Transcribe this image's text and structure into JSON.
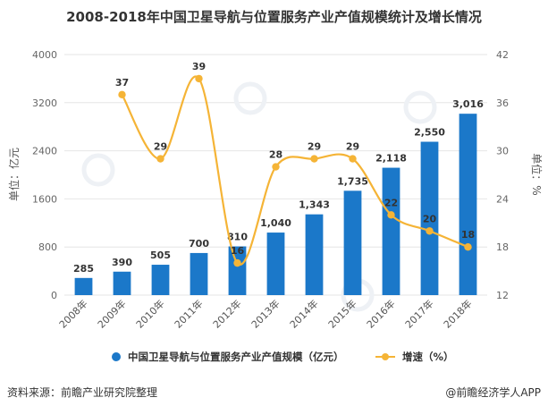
{
  "title": "2008-2018年中国卫星导航与位置服务产业产值规模统计及增长情况",
  "footer": {
    "source": "资料来源：前瞻产业研究院整理",
    "brand": "@前瞻经济学人APP"
  },
  "colors": {
    "bar": "#1b78c9",
    "line": "#f5b436",
    "grid": "#e6e6e6"
  },
  "chart_data": {
    "type": "bar+line",
    "categories": [
      "2008年",
      "2009年",
      "2010年",
      "2011年",
      "2012年",
      "2013年",
      "2014年",
      "2015年",
      "2016年",
      "2017年",
      "2018年"
    ],
    "series": [
      {
        "name": "中国卫星导航与位置服务产业产值规模（亿元）",
        "type": "bar",
        "axis": "left",
        "values": [
          285,
          390,
          505,
          700,
          810,
          1040,
          1343,
          1735,
          2118,
          2550,
          3016
        ],
        "labels": [
          "285",
          "390",
          "505",
          "700",
          "810",
          "1,040",
          "1,343",
          "1,735",
          "2,118",
          "2,550",
          "3,016"
        ]
      },
      {
        "name": "增速（%）",
        "type": "line",
        "axis": "right",
        "values": [
          null,
          37,
          29,
          39,
          16,
          28,
          29,
          29,
          22,
          20,
          18
        ],
        "labels": [
          "",
          "37",
          "29",
          "39",
          "16",
          "28",
          "29",
          "29",
          "22",
          "20",
          "18"
        ]
      }
    ],
    "y_left": {
      "label": "单位：亿元",
      "min": 0,
      "max": 4000,
      "ticks": [
        0,
        800,
        1600,
        2400,
        3200,
        4000
      ]
    },
    "y_right": {
      "label": "单位：%",
      "min": 12,
      "max": 42,
      "ticks": [
        12,
        18,
        24,
        30,
        36,
        42
      ]
    },
    "legend": [
      "中国卫星导航与位置服务产业产值规模（亿元）",
      "增速（%）"
    ],
    "legend_position": "bottom",
    "grid": true
  }
}
